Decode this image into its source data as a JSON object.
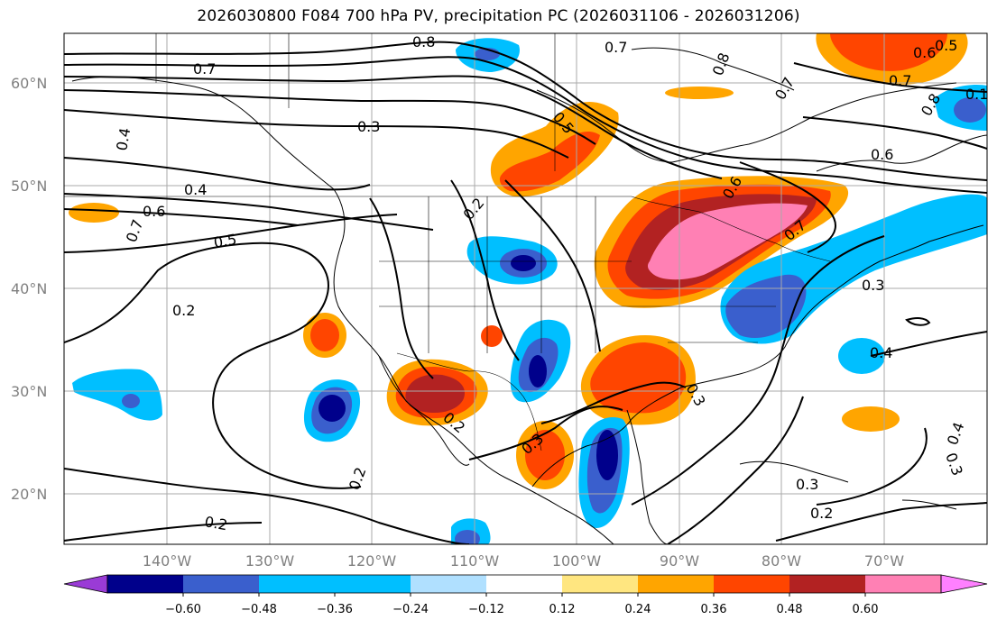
{
  "title": "2026030800 F084 700 hPa PV, precipitation PC (2026031106 - 2026031206)",
  "axes": {
    "lat_labels": [
      "60°N",
      "50°N",
      "40°N",
      "30°N",
      "20°N"
    ],
    "lon_labels": [
      "140°W",
      "130°W",
      "120°W",
      "110°W",
      "100°W",
      "90°W",
      "80°W",
      "70°W"
    ]
  },
  "colorbar": {
    "tick_labels": [
      "−0.60",
      "−0.48",
      "−0.36",
      "−0.24",
      "−0.12",
      "0.12",
      "0.24",
      "0.36",
      "0.48",
      "0.60"
    ],
    "colors": [
      "#9a3bd6",
      "#00008b",
      "#3a5fcd",
      "#00bfff",
      "#b0e0ff",
      "#ffffff",
      "#ffe680",
      "#ffa500",
      "#ff4500",
      "#b22222",
      "#ff80b4",
      "#ff80ff"
    ]
  },
  "contour_labels": [
    "0.8",
    "0.7",
    "0.5",
    "0.6",
    "0.7",
    "0.8",
    "0.7",
    "0.3",
    "0.4",
    "0.5",
    "0.6",
    "0.4",
    "0.6",
    "0.7",
    "0.5",
    "0.2",
    "0.2",
    "0.6",
    "0.7",
    "0.3",
    "0.4",
    "0.3",
    "0.2",
    "0.3",
    "0.2",
    "0.4",
    "0.3",
    "0.3",
    "0.2",
    "0.2",
    "0.1",
    "0.7",
    "0.8"
  ]
}
